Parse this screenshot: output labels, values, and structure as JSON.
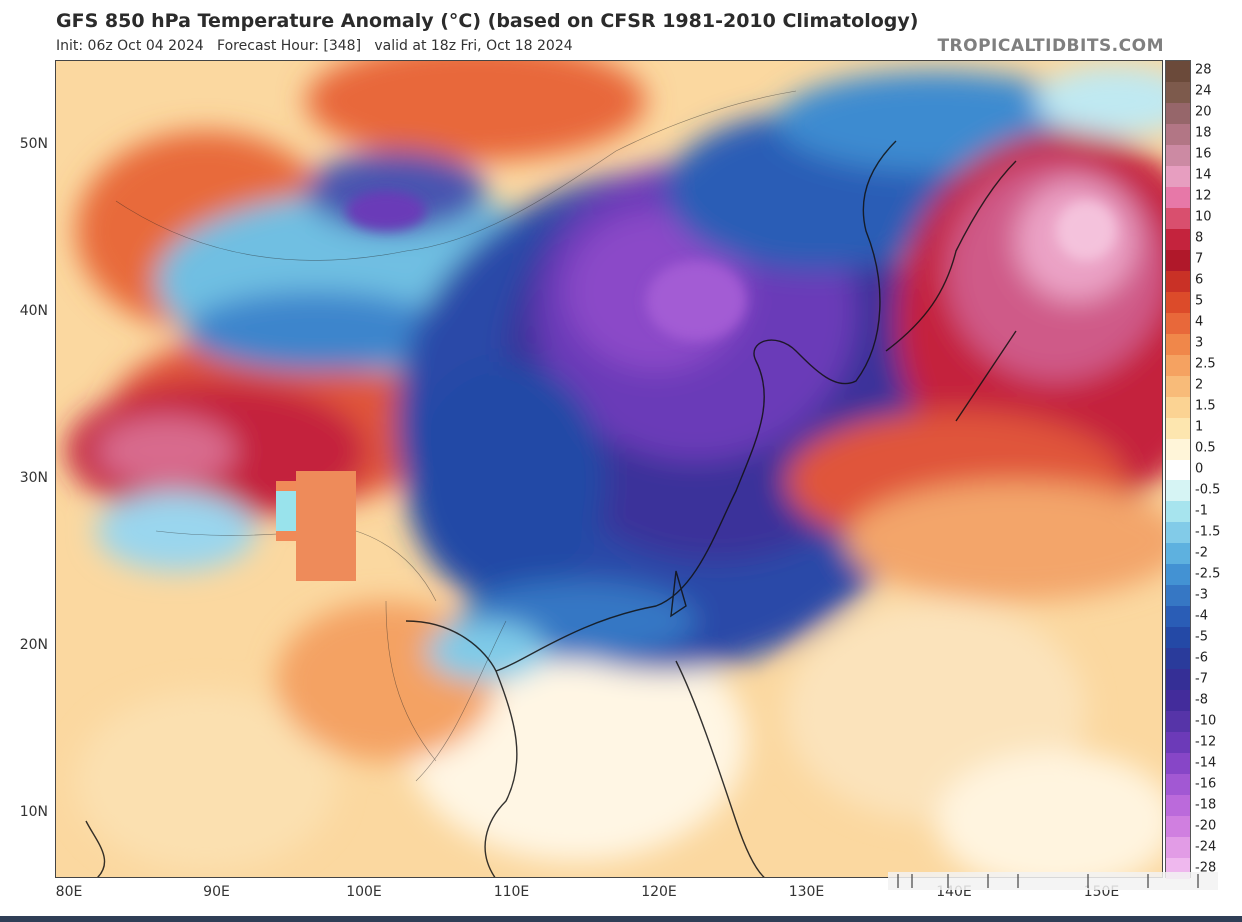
{
  "header": {
    "title": "GFS 850 hPa Temperature Anomaly (°C) (based on CFSR 1981-2010 Climatology)",
    "subtitle": "Init: 06z Oct 04 2024   Forecast Hour: [348]   valid at 18z Fri, Oct 18 2024",
    "credit": "TROPICALTIDBITS.COM"
  },
  "map": {
    "lat_labels": [
      "50N",
      "40N",
      "30N",
      "20N",
      "10N"
    ],
    "lon_labels": [
      "80E",
      "90E",
      "100E",
      "110E",
      "120E",
      "130E",
      "140E",
      "150E"
    ]
  },
  "colorbar": {
    "labels": [
      "28",
      "24",
      "20",
      "18",
      "16",
      "14",
      "12",
      "10",
      "8",
      "7",
      "6",
      "5",
      "4",
      "3",
      "2.5",
      "2",
      "1.5",
      "1",
      "0.5",
      "0",
      "-0.5",
      "-1",
      "-1.5",
      "-2",
      "-2.5",
      "-3",
      "-4",
      "-5",
      "-6",
      "-7",
      "-8",
      "-10",
      "-12",
      "-14",
      "-16",
      "-18",
      "-20",
      "-24",
      "-28"
    ],
    "colors": [
      "#6b4a3a",
      "#7d5a4c",
      "#96666a",
      "#b27685",
      "#cc8aa3",
      "#e79ec0",
      "#e778a8",
      "#d94f6e",
      "#c4233d",
      "#b0182a",
      "#c93126",
      "#dc4b2a",
      "#e8683a",
      "#f0874a",
      "#f5a261",
      "#f8bb79",
      "#fbd393",
      "#fde6af",
      "#fff5d9",
      "#ffffff",
      "#d6f4f4",
      "#a7e4ee",
      "#82cbe8",
      "#5eb1df",
      "#4392d3",
      "#3677c4",
      "#2a5db6",
      "#2449a6",
      "#2a3b9b",
      "#352f96",
      "#432c9b",
      "#5634a8",
      "#6c3ab8",
      "#8746c7",
      "#a258d3",
      "#bb6adb",
      "#d07fe0",
      "#e29ce6",
      "#efb8ee"
    ]
  }
}
